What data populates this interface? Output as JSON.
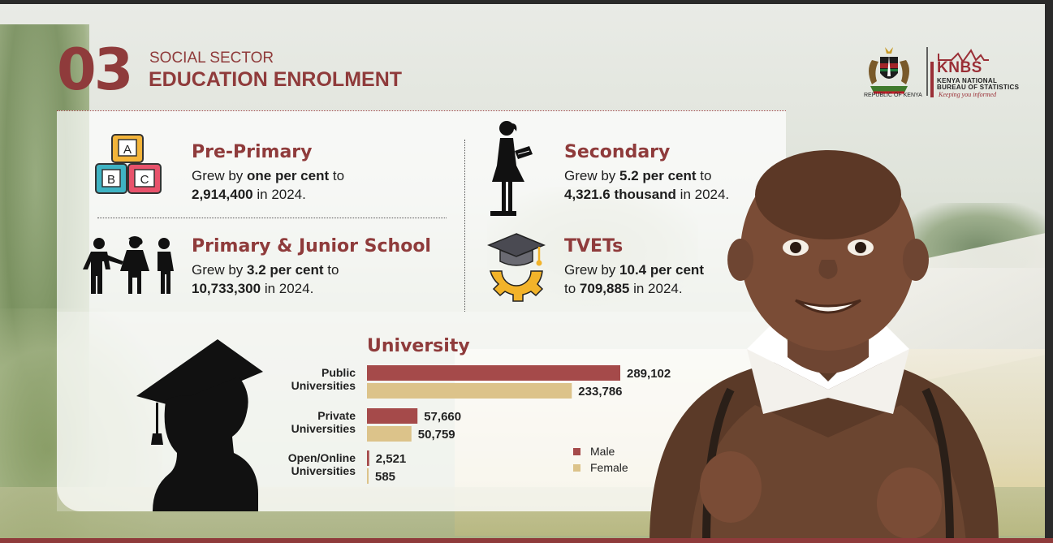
{
  "header": {
    "number": "03",
    "sector": "SOCIAL SECTOR",
    "title": "EDUCATION ENROLMENT"
  },
  "logos": {
    "republic": "REPUBLIC OF KENYA",
    "knbs": "KNBS",
    "knbs_line1": "KENYA NATIONAL",
    "knbs_line2": "BUREAU OF STATISTICS",
    "tagline": "Keeping you informed"
  },
  "stats": {
    "pre_primary": {
      "title": "Pre-Primary",
      "text1_a": "Grew by ",
      "text1_b": "one per cent",
      "text1_c": " to",
      "text2_a": "2,914,400",
      "text2_b": " in 2024."
    },
    "primary": {
      "title": "Primary & Junior School",
      "text1_a": "Grew by ",
      "text1_b": "3.2 per cent",
      "text1_c": " to",
      "text2_a": "10,733,300",
      "text2_b": " in 2024."
    },
    "secondary": {
      "title": "Secondary",
      "text1_a": "Grew by ",
      "text1_b": "5.2 per cent",
      "text1_c": " to",
      "text2_a": "4,321.6 thousand",
      "text2_b": " in 2024."
    },
    "tvets": {
      "title": "TVETs",
      "text1_a": "Grew by ",
      "text1_b": "10.4 per cent",
      "text1_c": "",
      "text2_a": "to ",
      "text2_b": "709,885",
      "text2_c": " in 2024."
    }
  },
  "blocks": {
    "a": "A",
    "b": "B",
    "c": "C"
  },
  "colors": {
    "male": "#a54a4a",
    "female": "#dcc38a",
    "accent": "#8f3b3b"
  },
  "chart_data": {
    "type": "bar",
    "orientation": "horizontal",
    "title": "University",
    "categories": [
      [
        "Public",
        "Universities"
      ],
      [
        "Private",
        "Universities"
      ],
      [
        "Open/Online",
        "Universities"
      ]
    ],
    "series": [
      {
        "name": "Male",
        "values": [
          289102,
          57660,
          2521
        ],
        "labels": [
          "289,102",
          "57,660",
          "2,521"
        ]
      },
      {
        "name": "Female",
        "values": [
          233786,
          50759,
          585
        ],
        "labels": [
          "233,786",
          "50,759",
          "585"
        ]
      }
    ],
    "xlim": [
      0,
      289102
    ],
    "grid": false,
    "legend": "bottom-right"
  }
}
